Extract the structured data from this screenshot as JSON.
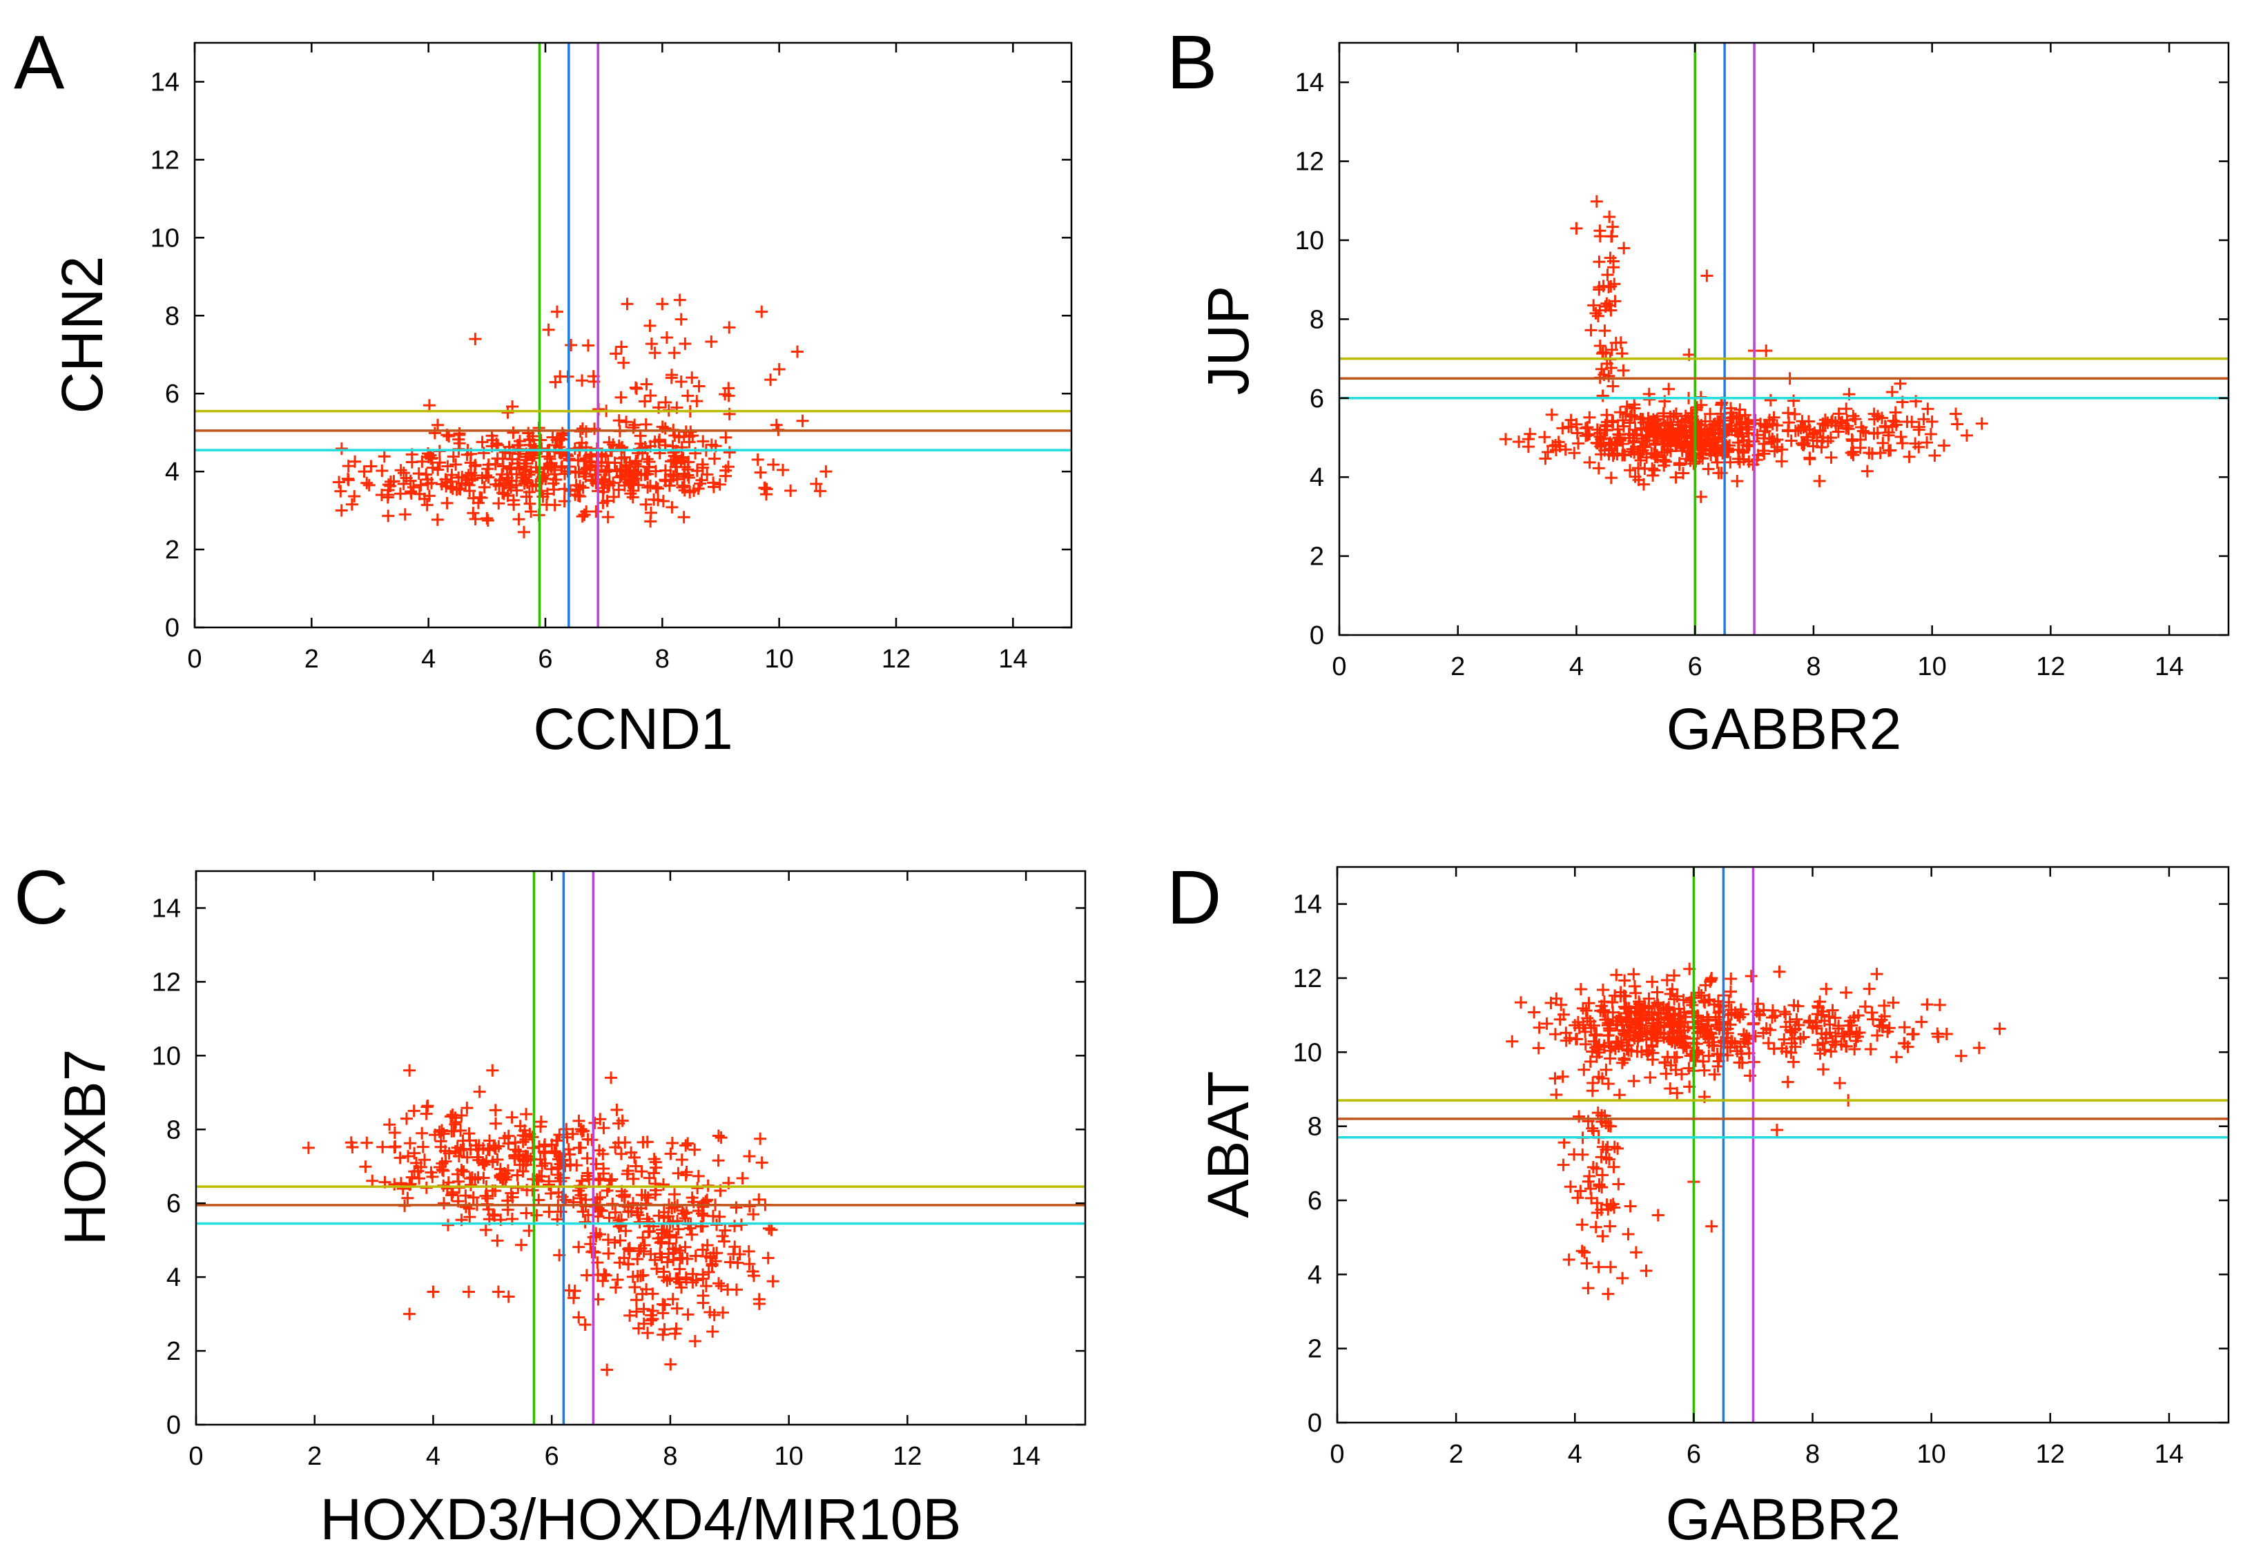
{
  "chart_data": [
    {
      "type": "scatter",
      "panel_label": "A",
      "xlabel": "CCND1",
      "ylabel": "CHN2",
      "xlim": [
        0,
        15
      ],
      "ylim": [
        0,
        15
      ],
      "xticks": [
        "0",
        "2",
        "4",
        "6",
        "8",
        "10",
        "12",
        "14"
      ],
      "yticks": [
        "0",
        "2",
        "4",
        "6",
        "8",
        "10",
        "12",
        "14"
      ],
      "vlines": [
        {
          "x": 5.9,
          "color": "#33bb00"
        },
        {
          "x": 6.4,
          "color": "#1a7fe0"
        },
        {
          "x": 6.9,
          "color": "#bb44dd"
        }
      ],
      "hlines": [
        {
          "y": 5.55,
          "color": "#bbbb00"
        },
        {
          "y": 5.05,
          "color": "#c0541a"
        },
        {
          "y": 4.55,
          "color": "#22dddd"
        }
      ],
      "clusters": [
        {
          "cx": 6.6,
          "cy": 4.1,
          "sx": 1.45,
          "sy": 0.55,
          "n": 420
        },
        {
          "cx": 7.8,
          "cy": 6.4,
          "sx": 0.9,
          "sy": 1.0,
          "n": 60
        },
        {
          "cx": 4.0,
          "cy": 3.8,
          "sx": 0.7,
          "sy": 0.45,
          "n": 60
        }
      ],
      "points": [
        [
          2.9,
          4.0
        ],
        [
          3.2,
          3.4
        ],
        [
          4.8,
          7.4
        ],
        [
          10.4,
          5.3
        ],
        [
          10.7,
          3.5
        ],
        [
          10.8,
          4.0
        ],
        [
          9.7,
          8.1
        ],
        [
          8.0,
          8.3
        ],
        [
          8.3,
          8.4
        ],
        [
          7.4,
          8.3
        ],
        [
          6.2,
          8.1
        ],
        [
          7.3,
          7.2
        ],
        [
          5.0,
          2.8
        ],
        [
          3.6,
          2.9
        ]
      ],
      "point_color": "#ff2a00",
      "seed": 11
    },
    {
      "type": "scatter",
      "panel_label": "B",
      "xlabel": "GABBR2",
      "ylabel": "JUP",
      "xlim": [
        0,
        15
      ],
      "ylim": [
        0,
        15
      ],
      "xticks": [
        "0",
        "2",
        "4",
        "6",
        "8",
        "10",
        "12",
        "14"
      ],
      "yticks": [
        "0",
        "2",
        "4",
        "6",
        "8",
        "10",
        "12",
        "14"
      ],
      "vlines": [
        {
          "x": 6.0,
          "color": "#33bb00"
        },
        {
          "x": 6.5,
          "color": "#1a7fe0"
        },
        {
          "x": 7.0,
          "color": "#bb44dd"
        }
      ],
      "hlines": [
        {
          "y": 7.0,
          "color": "#bbbb00"
        },
        {
          "y": 6.5,
          "color": "#c0541a"
        },
        {
          "y": 6.0,
          "color": "#22dddd"
        }
      ],
      "clusters": [
        {
          "cx": 5.6,
          "cy": 5.0,
          "sx": 0.95,
          "sy": 0.4,
          "n": 420
        },
        {
          "cx": 8.5,
          "cy": 5.1,
          "sx": 0.9,
          "sy": 0.4,
          "n": 110
        },
        {
          "cx": 4.5,
          "cy": 7.8,
          "sx": 0.15,
          "sy": 1.2,
          "n": 45
        }
      ],
      "points": [
        [
          4.0,
          10.3
        ],
        [
          4.4,
          10.1
        ],
        [
          4.6,
          10.1
        ],
        [
          4.8,
          9.8
        ],
        [
          5.9,
          7.1
        ],
        [
          6.2,
          9.1
        ],
        [
          7.0,
          7.2
        ],
        [
          7.2,
          7.2
        ],
        [
          7.6,
          6.5
        ],
        [
          8.6,
          6.1
        ],
        [
          9.5,
          5.9
        ],
        [
          10.4,
          5.6
        ],
        [
          10.2,
          4.8
        ],
        [
          8.1,
          3.9
        ],
        [
          6.1,
          3.5
        ],
        [
          5.8,
          4.1
        ]
      ],
      "point_color": "#ff2a00",
      "seed": 23
    },
    {
      "type": "scatter",
      "panel_label": "C",
      "xlabel": "HOXD3/HOXD4/MIR10B",
      "ylabel": "HOXB7",
      "xlim": [
        0,
        15
      ],
      "ylim": [
        0,
        15
      ],
      "xticks": [
        "0",
        "2",
        "4",
        "6",
        "8",
        "10",
        "12",
        "14"
      ],
      "yticks": [
        "0",
        "2",
        "4",
        "6",
        "8",
        "10",
        "12",
        "14"
      ],
      "vlines": [
        {
          "x": 5.7,
          "color": "#33bb00"
        },
        {
          "x": 6.2,
          "color": "#1a7fe0"
        },
        {
          "x": 6.7,
          "color": "#bb44dd"
        }
      ],
      "hlines": [
        {
          "y": 6.45,
          "color": "#bbbb00"
        },
        {
          "y": 5.95,
          "color": "#c0541a"
        },
        {
          "y": 5.45,
          "color": "#22dddd"
        }
      ],
      "clusters": [
        {
          "cx": 5.0,
          "cy": 7.2,
          "sx": 1.0,
          "sy": 0.75,
          "n": 220
        },
        {
          "cx": 8.0,
          "cy": 5.0,
          "sx": 0.75,
          "sy": 1.2,
          "n": 230
        },
        {
          "cx": 6.6,
          "cy": 6.4,
          "sx": 1.2,
          "sy": 1.0,
          "n": 120
        }
      ],
      "points": [
        [
          3.6,
          9.6
        ],
        [
          5.0,
          9.6
        ],
        [
          7.0,
          9.4
        ],
        [
          3.6,
          3.0
        ],
        [
          4.0,
          3.6
        ],
        [
          4.6,
          3.6
        ],
        [
          5.1,
          3.6
        ],
        [
          9.5,
          3.4
        ],
        [
          9.4,
          5.7
        ],
        [
          8.1,
          2.6
        ]
      ],
      "point_color": "#ff2a00",
      "seed": 37
    },
    {
      "type": "scatter",
      "panel_label": "D",
      "xlabel": "GABBR2",
      "ylabel": "ABAT",
      "xlim": [
        0,
        15
      ],
      "ylim": [
        0,
        15
      ],
      "xticks": [
        "0",
        "2",
        "4",
        "6",
        "8",
        "10",
        "12",
        "14"
      ],
      "yticks": [
        "0",
        "2",
        "4",
        "6",
        "8",
        "10",
        "12",
        "14"
      ],
      "vlines": [
        {
          "x": 6.0,
          "color": "#33bb00"
        },
        {
          "x": 6.5,
          "color": "#1a7fe0"
        },
        {
          "x": 7.0,
          "color": "#bb44dd"
        }
      ],
      "hlines": [
        {
          "y": 8.7,
          "color": "#bbbb00"
        },
        {
          "y": 8.2,
          "color": "#c0541a"
        },
        {
          "y": 7.7,
          "color": "#22dddd"
        }
      ],
      "clusters": [
        {
          "cx": 5.6,
          "cy": 10.6,
          "sx": 1.0,
          "sy": 0.6,
          "n": 400
        },
        {
          "cx": 8.5,
          "cy": 10.6,
          "sx": 0.95,
          "sy": 0.55,
          "n": 110
        },
        {
          "cx": 4.4,
          "cy": 7.2,
          "sx": 0.25,
          "sy": 1.5,
          "n": 70
        }
      ],
      "points": [
        [
          3.9,
          4.4
        ],
        [
          4.2,
          4.3
        ],
        [
          4.4,
          4.2
        ],
        [
          4.6,
          4.2
        ],
        [
          4.8,
          3.9
        ],
        [
          5.2,
          4.1
        ],
        [
          5.4,
          5.6
        ],
        [
          6.3,
          5.3
        ],
        [
          6.0,
          6.5
        ],
        [
          7.4,
          7.9
        ],
        [
          8.6,
          8.7
        ],
        [
          10.5,
          9.9
        ],
        [
          10.1,
          10.5
        ],
        [
          6.3,
          12.0
        ],
        [
          5.3,
          11.9
        ],
        [
          4.1,
          11.7
        ]
      ],
      "point_color": "#ff2a00",
      "seed": 53
    }
  ]
}
